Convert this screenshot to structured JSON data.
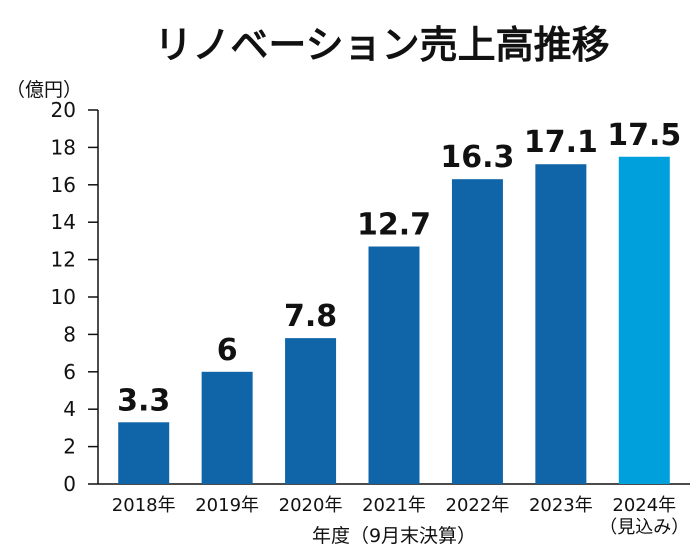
{
  "chart_data": {
    "type": "bar",
    "title": "リノベーション売上高推移",
    "unit": "（億円）",
    "xlabel": "年度（9月末決算）",
    "ylabel": "",
    "ylim": [
      0,
      20
    ],
    "yticks": [
      0,
      2,
      4,
      6,
      8,
      10,
      12,
      14,
      16,
      18,
      20
    ],
    "categories": [
      [
        "2018年"
      ],
      [
        "2019年"
      ],
      [
        "2020年"
      ],
      [
        "2021年"
      ],
      [
        "2022年"
      ],
      [
        "2023年"
      ],
      [
        "2024年",
        "（見込み）"
      ]
    ],
    "values": [
      3.3,
      6,
      7.8,
      12.7,
      16.3,
      17.1,
      17.5
    ],
    "value_labels": [
      "3.3",
      "6",
      "7.8",
      "12.7",
      "16.3",
      "17.1",
      "17.5"
    ],
    "colors": {
      "actual": "#0f65a8",
      "forecast": "#00a0dc"
    },
    "highlight_index": 6,
    "grid": false,
    "legend": "none"
  }
}
